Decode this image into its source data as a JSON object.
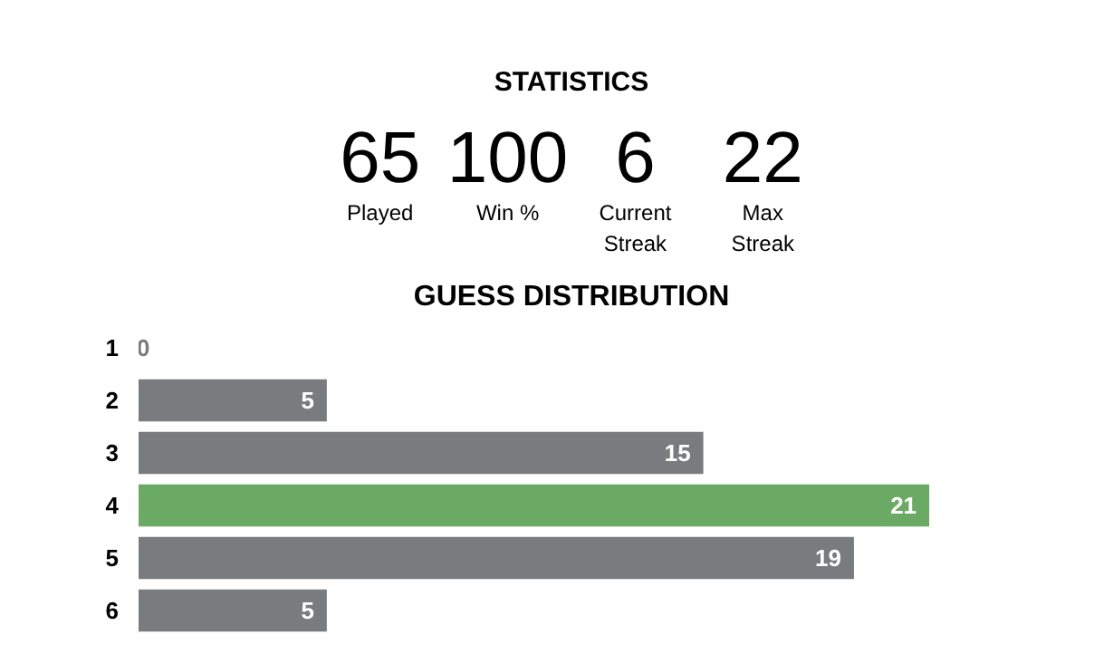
{
  "chart_data": [
    {
      "type": "other",
      "title": "STATISTICS",
      "annotations": [
        "65",
        "Played",
        "100",
        "Win %",
        "6",
        "Current\nStreak",
        "22",
        "Max\nStreak"
      ]
    },
    {
      "type": "bar",
      "title": "GUESS DISTRIBUTION",
      "orientation": "horizontal",
      "categories": [
        "1",
        "2",
        "3",
        "4",
        "5",
        "6"
      ],
      "values": [
        0,
        5,
        15,
        21,
        19,
        5
      ],
      "colors": [
        "#787c7e",
        "#787c7e",
        "#787c7e",
        "#6aaa64",
        "#787c7e",
        "#787c7e"
      ],
      "data_labels": true
    }
  ]
}
